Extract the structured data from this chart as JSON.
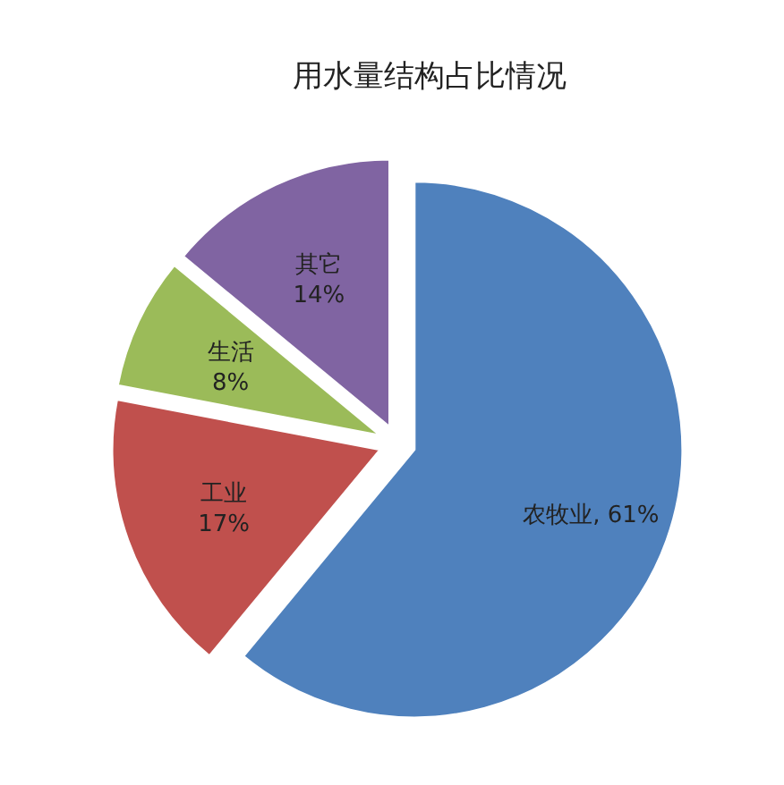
{
  "chart_data": {
    "type": "pie",
    "title": "用水量结构占比情况",
    "categories": [
      "农牧业",
      "工业",
      "生活",
      "其它"
    ],
    "values": [
      61,
      17,
      8,
      14
    ],
    "value_labels": [
      "61%",
      "17%",
      "8%",
      "14%"
    ],
    "colors": [
      "#4f81bd",
      "#c0504d",
      "#9bbb59",
      "#8064a2"
    ],
    "legend": false
  }
}
